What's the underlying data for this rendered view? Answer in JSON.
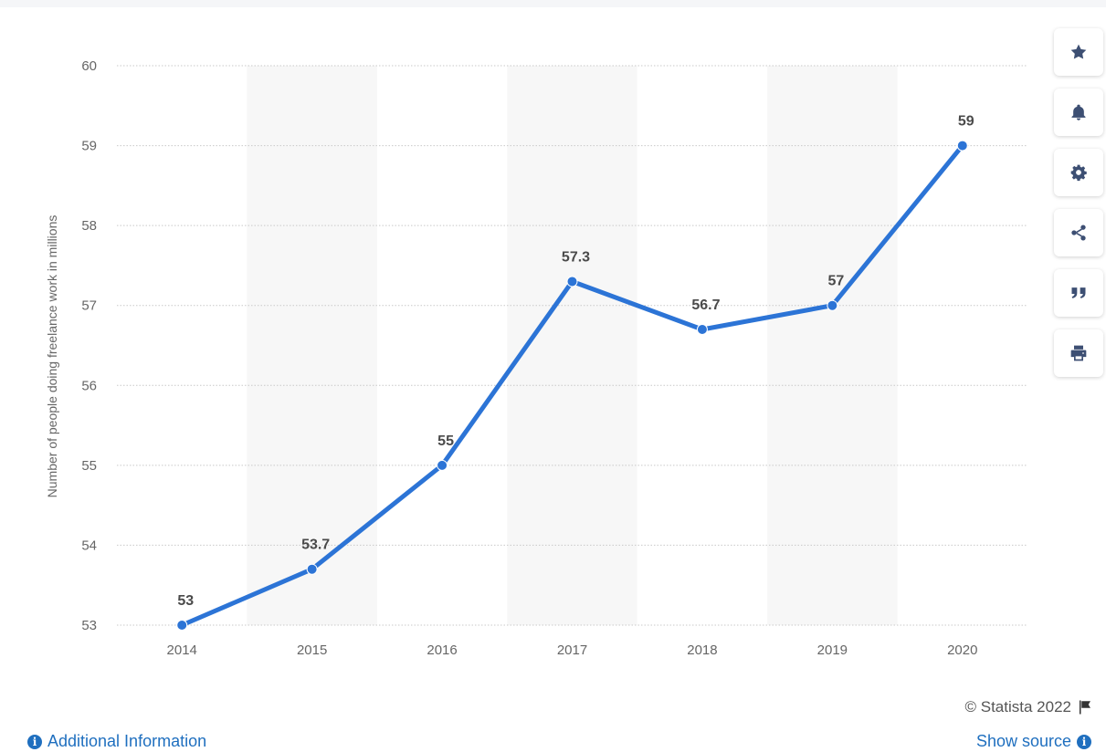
{
  "chart_data": {
    "type": "line",
    "categories": [
      "2014",
      "2015",
      "2016",
      "2017",
      "2018",
      "2019",
      "2020"
    ],
    "series": [
      {
        "values": [
          53,
          53.7,
          55,
          57.3,
          56.7,
          57,
          59
        ],
        "color": "#2c74d6"
      }
    ],
    "data_labels": [
      "53",
      "53.7",
      "55",
      "57.3",
      "56.7",
      "57",
      "59"
    ],
    "ylabel": "Number of people doing freelance work in millions",
    "ylim": [
      53,
      60
    ],
    "yticks": [
      53,
      54,
      55,
      56,
      57,
      58,
      59,
      60
    ],
    "grid": true,
    "alternating_column_shading": true
  },
  "toolbar": {
    "buttons": [
      {
        "name": "favorite-button",
        "icon": "star-icon"
      },
      {
        "name": "notification-button",
        "icon": "bell-icon"
      },
      {
        "name": "settings-button",
        "icon": "gear-icon"
      },
      {
        "name": "share-button",
        "icon": "share-icon"
      },
      {
        "name": "cite-button",
        "icon": "quote-icon"
      },
      {
        "name": "print-button",
        "icon": "print-icon"
      }
    ]
  },
  "footer": {
    "credit": "© Statista 2022",
    "additional_info": "Additional Information",
    "show_source": "Show source"
  }
}
